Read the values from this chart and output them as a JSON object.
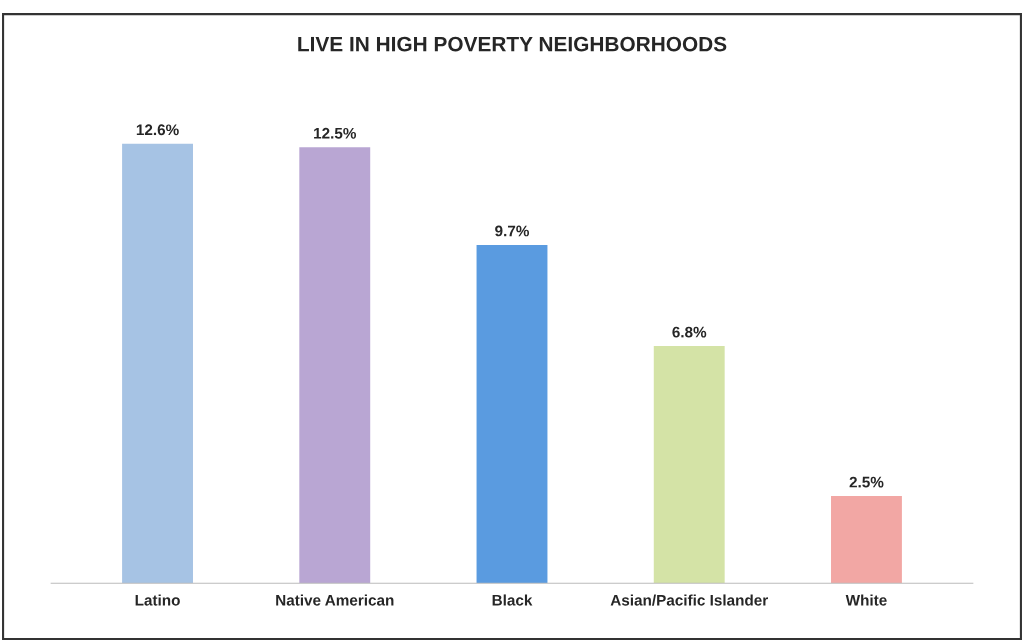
{
  "chart_data": {
    "type": "bar",
    "title": "LIVE IN HIGH POVERTY NEIGHBORHOODS",
    "categories": [
      "Latino",
      "Native American",
      "Black",
      "Asian/Pacific Islander",
      "White"
    ],
    "values": [
      12.6,
      12.5,
      9.7,
      6.8,
      2.5
    ],
    "value_labels": [
      "12.6%",
      "12.5%",
      "9.7%",
      "6.8%",
      "2.5%"
    ],
    "colors": [
      "#a6c3e4",
      "#b9a6d3",
      "#5a9be0",
      "#d4e3a6",
      "#f2a7a4"
    ]
  }
}
